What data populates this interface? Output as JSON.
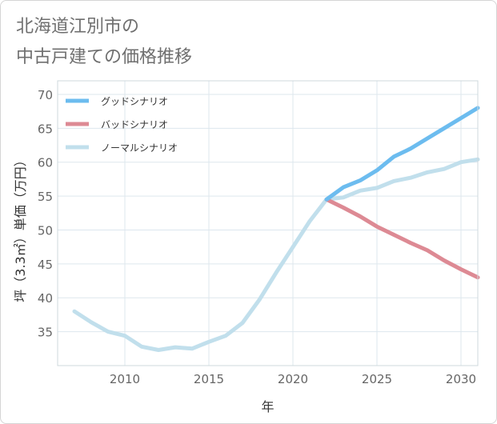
{
  "title_lines": [
    "北海道江別市の",
    "中古戸建ての価格推移"
  ],
  "chart_data": {
    "type": "line",
    "title": "北海道江別市の中古戸建ての価格推移",
    "xlabel": "年",
    "ylabel": "坪（3.3㎡）単価（万円）",
    "xlim": [
      2006,
      2031
    ],
    "ylim": [
      30,
      72
    ],
    "xticks": [
      2010,
      2015,
      2020,
      2025,
      2030
    ],
    "yticks": [
      35,
      40,
      45,
      50,
      55,
      60,
      65,
      70
    ],
    "grid": true,
    "legend_position": "top-left",
    "series": [
      {
        "name": "グッドシナリオ",
        "color": "#6cbcef",
        "x": [
          2022,
          2023,
          2024,
          2025,
          2026,
          2027,
          2028,
          2029,
          2030,
          2031
        ],
        "y": [
          54.5,
          56.3,
          57.3,
          58.8,
          60.8,
          62.0,
          63.5,
          65.0,
          66.5,
          68.0
        ]
      },
      {
        "name": "バッドシナリオ",
        "color": "#dd8a94",
        "x": [
          2022,
          2023,
          2024,
          2025,
          2026,
          2027,
          2028,
          2029,
          2030,
          2031
        ],
        "y": [
          54.5,
          53.3,
          52.0,
          50.5,
          49.3,
          48.1,
          47.0,
          45.5,
          44.2,
          43.0
        ]
      },
      {
        "name": "ノーマルシナリオ",
        "color": "#c1dfec",
        "x": [
          2007,
          2008,
          2009,
          2010,
          2011,
          2012,
          2013,
          2014,
          2015,
          2016,
          2017,
          2018,
          2019,
          2020,
          2021,
          2022,
          2023,
          2024,
          2025,
          2026,
          2027,
          2028,
          2029,
          2030,
          2031
        ],
        "y": [
          38.0,
          36.4,
          35.0,
          34.4,
          32.8,
          32.3,
          32.7,
          32.5,
          33.5,
          34.4,
          36.3,
          39.7,
          43.7,
          47.5,
          51.3,
          54.5,
          54.8,
          55.8,
          56.2,
          57.2,
          57.7,
          58.5,
          59.0,
          60.0,
          60.4
        ]
      }
    ]
  }
}
